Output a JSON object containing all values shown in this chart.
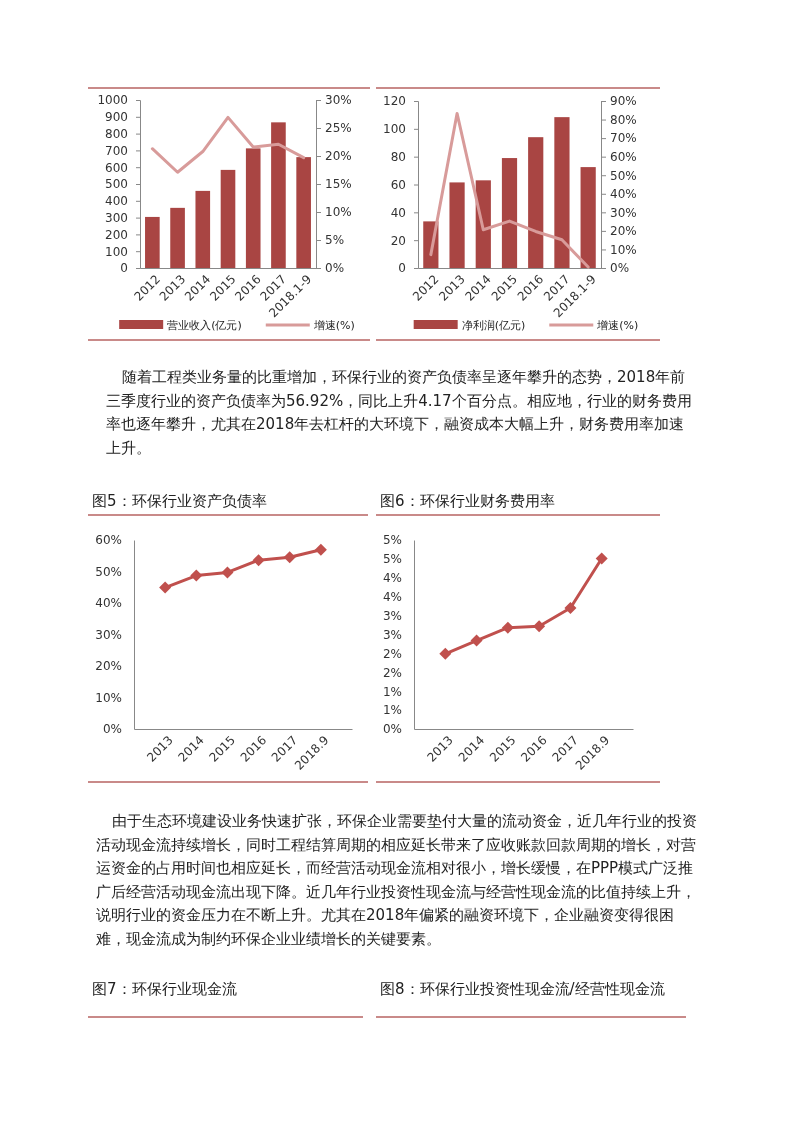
{
  "chart_data": [
    {
      "type": "bar",
      "categories": [
        "2012",
        "2013",
        "2014",
        "2015",
        "2016",
        "2017",
        "2018.1-9"
      ],
      "series": [
        {
          "name": "营业收入(亿元)",
          "type": "bar",
          "color": "#a94543",
          "values": [
            304,
            358,
            459,
            584,
            712,
            867,
            660
          ]
        },
        {
          "name": "增速(%)",
          "type": "line",
          "axis": "y2",
          "color": "#d89b9a",
          "values": [
            21.3,
            17.1,
            20.8,
            26.9,
            21.6,
            22.1,
            19.7
          ]
        }
      ],
      "ylim": [
        0,
        1000
      ],
      "yticks": [
        0,
        100,
        200,
        300,
        400,
        500,
        600,
        700,
        800,
        900,
        1000
      ],
      "y2lim": [
        0,
        30
      ],
      "y2ticks": [
        {
          "value": 0,
          "label": "0%"
        },
        {
          "value": 5,
          "label": "5%"
        },
        {
          "value": 10,
          "label": "10%"
        },
        {
          "value": 15,
          "label": "15%"
        },
        {
          "value": 20,
          "label": "20%"
        },
        {
          "value": 25,
          "label": "25%"
        },
        {
          "value": 30,
          "label": "30%"
        }
      ],
      "legend": "bottom",
      "grid": false,
      "annotations": [
        "随着工程类业务量的比重增加，环保行业的资产负债率呈逐年攀升的态势，2018年前三季度行业的资产负债率为56.92%，同比上升4.17个百分点。相应地，行业的财务费用率也逐年攀升，尤其在2018年去杠杆的大环境下，融资成本大幅上升，财务费用率加速上升。"
      ]
    },
    {
      "type": "bar",
      "categories": [
        "2012",
        "2013",
        "2014",
        "2015",
        "2016",
        "2017",
        "2018.1-9"
      ],
      "series": [
        {
          "name": "净利润(亿元)",
          "type": "bar",
          "color": "#a94543",
          "values": [
            33.5,
            61.5,
            63,
            79,
            94,
            108.4,
            72.5
          ]
        },
        {
          "name": "增速(%)",
          "type": "line",
          "axis": "y2",
          "color": "#d89b9a",
          "values": [
            7.2,
            83.3,
            20.6,
            25.3,
            19.7,
            15.2,
            0.5
          ]
        }
      ],
      "ylim": [
        0,
        120
      ],
      "yticks": [
        0,
        20,
        40,
        60,
        80,
        100,
        120
      ],
      "y2lim": [
        0,
        90
      ],
      "y2ticks": [
        {
          "value": 0,
          "label": "0%"
        },
        {
          "value": 10,
          "label": "10%"
        },
        {
          "value": 20,
          "label": "20%"
        },
        {
          "value": 30,
          "label": "30%"
        },
        {
          "value": 40,
          "label": "40%"
        },
        {
          "value": 50,
          "label": "50%"
        },
        {
          "value": 60,
          "label": "60%"
        },
        {
          "value": 70,
          "label": "70%"
        },
        {
          "value": 80,
          "label": "80%"
        },
        {
          "value": 90,
          "label": "90%"
        }
      ],
      "legend": "bottom",
      "grid": false
    },
    {
      "type": "line",
      "title": "图5：环保行业资产负债率",
      "categories": [
        "2013",
        "2014",
        "2015",
        "2016",
        "2017",
        "2018.9"
      ],
      "series": [
        {
          "color": "#c0504d",
          "values": [
            44.9,
            48.7,
            49.7,
            53.6,
            54.5,
            56.9
          ]
        }
      ],
      "ylim": [
        0,
        60
      ],
      "yticks": [
        {
          "value": 0,
          "label": "0%"
        },
        {
          "value": 10,
          "label": "10%"
        },
        {
          "value": 20,
          "label": "20%"
        },
        {
          "value": 30,
          "label": "30%"
        },
        {
          "value": 40,
          "label": "40%"
        },
        {
          "value": 50,
          "label": "50%"
        },
        {
          "value": 60,
          "label": "60%"
        }
      ],
      "marker": "diamond",
      "line_style": "solid",
      "grid": false,
      "annotations": [
        "由于生态环境建设业务快速扩张，环保企业需要垫付大量的流动资金，近几年行业的投资活动现金流持续增长，同时工程结算周期的相应延长带来了应收账款回款周期的增长，对营运资金的占用时间也相应延长，而经营活动现金流相对很小，增长缓慢，在PPP模式广泛推广后经营活动现金流出现下降。近几年行业投资性现金流与经营性现金流的比值持续上升，说明行业的资金压力在不断上升。尤其在2018年偏紧的融资环境下，企业融资变得很困难，现金流成为制约环保企业业绩增长的关键要素。"
      ]
    },
    {
      "type": "line",
      "title": "图6：环保行业财务费用率",
      "categories": [
        "2013",
        "2014",
        "2015",
        "2016",
        "2017",
        "2018.9"
      ],
      "series": [
        {
          "color": "#c0504d",
          "values": [
            1.99,
            2.34,
            2.68,
            2.72,
            3.2,
            4.51
          ]
        }
      ],
      "ylim": [
        0,
        5
      ],
      "yticks": [
        {
          "value": 0,
          "label": "0%"
        },
        {
          "value": 0.5,
          "label": "1%"
        },
        {
          "value": 1,
          "label": "1%"
        },
        {
          "value": 1.5,
          "label": "2%"
        },
        {
          "value": 2,
          "label": "2%"
        },
        {
          "value": 2.5,
          "label": "3%"
        },
        {
          "value": 3,
          "label": "3%"
        },
        {
          "value": 3.5,
          "label": "4%"
        },
        {
          "value": 4,
          "label": "4%"
        },
        {
          "value": 4.5,
          "label": "5%"
        },
        {
          "value": 5,
          "label": "5%"
        }
      ],
      "marker": "diamond",
      "line_style": "solid",
      "grid": false
    },
    {
      "type": "other",
      "title": "图7：环保行业现金流"
    },
    {
      "type": "other",
      "title": "图8：环保行业投资性现金流/经营性现金流"
    }
  ]
}
